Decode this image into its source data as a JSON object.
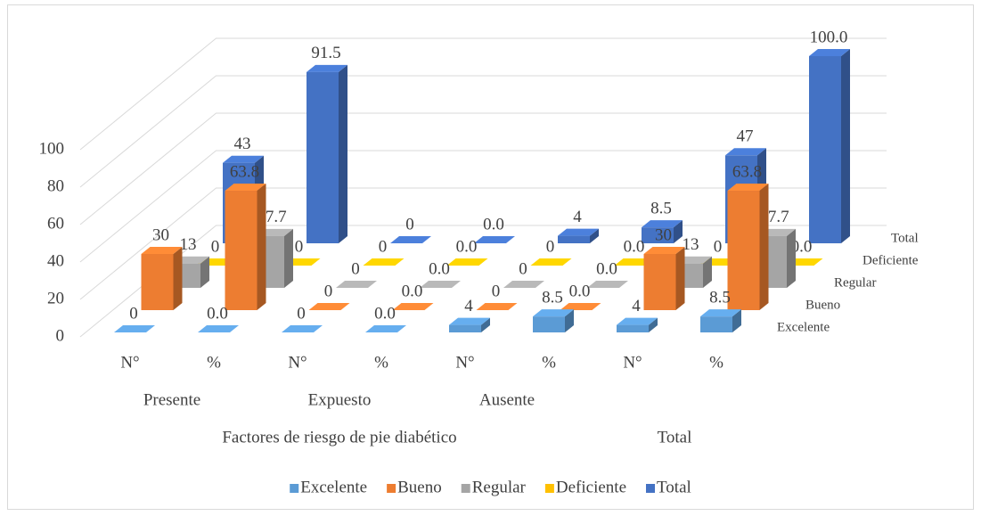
{
  "chart_data": {
    "type": "bar3d",
    "categories": [
      "N°",
      "%",
      "N°",
      "%",
      "N°",
      "%",
      "N°",
      "%"
    ],
    "groups": [
      "Presente",
      "Expuesto",
      "Ausente"
    ],
    "supergroups": [
      "Factores de riesgo de pie diabético",
      "Total"
    ],
    "ylim": [
      0,
      100
    ],
    "yticks": [
      0,
      20,
      40,
      60,
      80,
      100
    ],
    "grid": true,
    "legend": "bottom",
    "series": [
      {
        "name": "Excelente",
        "color": "#5b9bd5",
        "values": [
          0,
          0,
          0,
          0,
          4,
          8.5,
          4,
          8.5
        ],
        "value_labels": [
          "0",
          "0.0",
          "0",
          "0.0",
          "4",
          "8.5",
          "4",
          "8.5"
        ]
      },
      {
        "name": "Bueno",
        "color": "#ed7d31",
        "values": [
          30,
          63.8,
          0,
          0,
          0,
          0,
          30,
          63.8
        ],
        "value_labels": [
          "30",
          "63.8",
          "0",
          "0.0",
          "0",
          "0.0",
          "30",
          "63.8"
        ]
      },
      {
        "name": "Regular",
        "color": "#a5a5a5",
        "values": [
          13,
          27.7,
          0,
          0,
          0,
          0,
          13,
          27.7
        ],
        "value_labels": [
          "13",
          "27.7",
          "0",
          "0.0",
          "0",
          "0.0",
          "13",
          "27.7"
        ]
      },
      {
        "name": "Deficiente",
        "color": "#ffc000",
        "values": [
          0,
          0,
          0,
          0,
          0,
          0,
          0,
          0
        ],
        "value_labels": [
          "0",
          "0",
          "0",
          "0.0",
          "0",
          "0.0",
          "0",
          "0.0"
        ]
      },
      {
        "name": "Total",
        "color": "#4472c4",
        "values": [
          43,
          91.5,
          0,
          0,
          4,
          8.5,
          47,
          100
        ],
        "value_labels": [
          "43",
          "91.5",
          "0",
          "0.0",
          "4",
          "8.5",
          "47",
          "100.0"
        ]
      }
    ]
  }
}
